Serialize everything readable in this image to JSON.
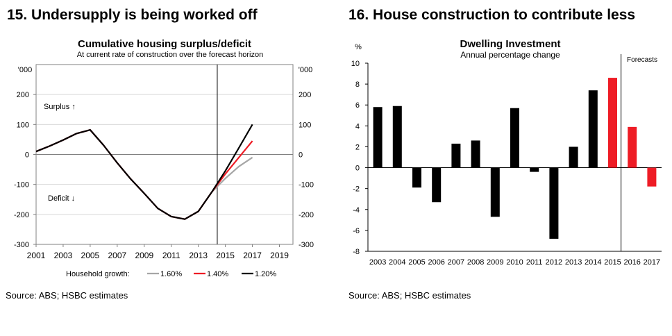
{
  "left_panel": {
    "heading": "15. Undersupply is being worked off",
    "source": "Source: ABS; HSBC estimates"
  },
  "right_panel": {
    "heading": "16. House construction to contribute less",
    "source": "Source: ABS; HSBC estimates"
  },
  "chart_data": [
    {
      "type": "line",
      "title": "Cumulative housing surplus/deficit",
      "subtitle": "At current rate of construction over the forecast horizon",
      "ylabel_left": "'000",
      "ylabel_right": "'000",
      "xlabel": "",
      "x_ticks": [
        2001,
        2003,
        2005,
        2007,
        2009,
        2011,
        2013,
        2015,
        2017,
        2019
      ],
      "xlim": [
        2001,
        2020
      ],
      "ylim": [
        -300,
        300
      ],
      "y_ticks": [
        -300,
        -200,
        -100,
        0,
        100,
        200
      ],
      "grid": true,
      "forecast_start": 2014.4,
      "annotations": [
        "Surplus ↑",
        "Deficit ↓"
      ],
      "legend_title": "Household growth:",
      "legend_position": "bottom",
      "series": [
        {
          "name": "1.60%",
          "color": "#a6a6a6",
          "x": [
            2001,
            2002,
            2003,
            2004,
            2005,
            2006,
            2007,
            2008,
            2009,
            2010,
            2011,
            2012,
            2013,
            2014,
            2015,
            2016,
            2017
          ],
          "y": [
            10,
            28,
            48,
            70,
            82,
            30,
            -28,
            -82,
            -130,
            -180,
            -207,
            -216,
            -190,
            -125,
            -80,
            -40,
            -10
          ]
        },
        {
          "name": "1.40%",
          "color": "#ee1c25",
          "x": [
            2001,
            2002,
            2003,
            2004,
            2005,
            2006,
            2007,
            2008,
            2009,
            2010,
            2011,
            2012,
            2013,
            2014,
            2015,
            2016,
            2017
          ],
          "y": [
            10,
            28,
            48,
            70,
            82,
            30,
            -28,
            -82,
            -130,
            -180,
            -207,
            -216,
            -190,
            -125,
            -65,
            -10,
            45
          ]
        },
        {
          "name": "1.20%",
          "color": "#000000",
          "x": [
            2001,
            2002,
            2003,
            2004,
            2005,
            2006,
            2007,
            2008,
            2009,
            2010,
            2011,
            2012,
            2013,
            2014,
            2015,
            2016,
            2017
          ],
          "y": [
            10,
            28,
            48,
            70,
            82,
            30,
            -28,
            -82,
            -130,
            -180,
            -207,
            -216,
            -190,
            -125,
            -55,
            22,
            100
          ]
        }
      ]
    },
    {
      "type": "bar",
      "title": "Dwelling Investment",
      "subtitle": "Annual percentage change",
      "ylabel": "%",
      "xlabel": "",
      "categories": [
        "2003",
        "2004",
        "2005",
        "2006",
        "2007",
        "2008",
        "2009",
        "2010",
        "2011",
        "2012",
        "2013",
        "2014",
        "2015",
        "2016",
        "2017"
      ],
      "values": [
        5.8,
        5.9,
        -1.9,
        -3.3,
        2.3,
        2.6,
        -4.7,
        5.7,
        -0.4,
        -6.8,
        2.0,
        7.4,
        8.6,
        3.9,
        -1.8
      ],
      "colors": [
        "#000000",
        "#000000",
        "#000000",
        "#000000",
        "#000000",
        "#000000",
        "#000000",
        "#000000",
        "#000000",
        "#000000",
        "#000000",
        "#000000",
        "#ee1c25",
        "#ee1c25",
        "#ee1c25"
      ],
      "ylim": [
        -8,
        10
      ],
      "y_ticks": [
        -8,
        -6,
        -4,
        -2,
        0,
        2,
        4,
        6,
        8,
        10
      ],
      "grid": false,
      "forecast_label": "Forecasts",
      "forecast_start_index": 13
    }
  ]
}
